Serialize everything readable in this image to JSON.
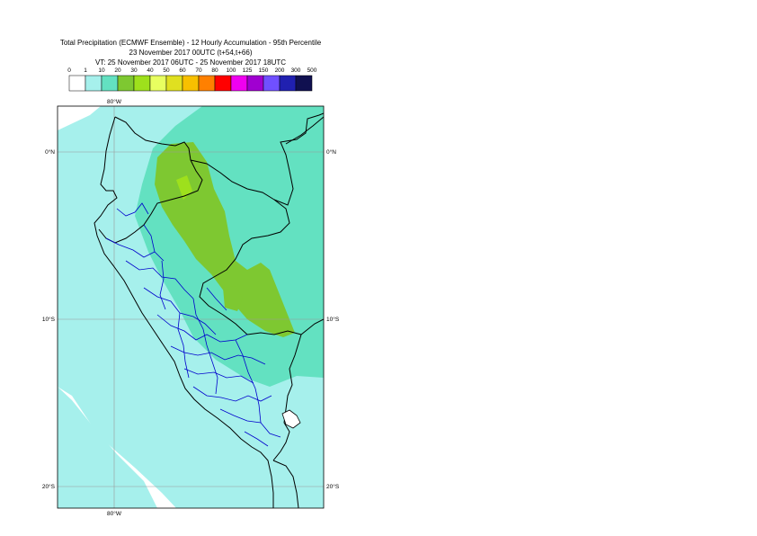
{
  "title": {
    "line1": "Total Precipitation (ECMWF Ensemble) - 12 Hourly Accumulation - 95th Percentile",
    "line2": "23 November 2017 00UTC (t+54,t+66)",
    "line3": "VT: 25 November 2017 06UTC - 25 November 2017 18UTC"
  },
  "legend": {
    "ticks": [
      "0",
      "1",
      "10",
      "20",
      "30",
      "40",
      "50",
      "60",
      "70",
      "80",
      "100",
      "125",
      "150",
      "200",
      "300",
      "500"
    ],
    "colors": [
      "#ffffff",
      "#a6f0ec",
      "#63e1c1",
      "#7ec831",
      "#9ee01c",
      "#e8ff60",
      "#e0e020",
      "#f8c000",
      "#ff8000",
      "#ff0000",
      "#f000f0",
      "#a000d0",
      "#7050ff",
      "#2020b0",
      "#101050"
    ]
  },
  "map": {
    "lon_labels": {
      "top": "80°W",
      "bottom": "80°W"
    },
    "lat_labels": [
      {
        "lat": 0,
        "left": "0°N",
        "right": "0°N"
      },
      {
        "lat": -10,
        "left": "10°S",
        "right": "10°S"
      },
      {
        "lat": -20,
        "left": "20°S",
        "right": "20°S"
      }
    ],
    "extent": {
      "lon_min": -83.4,
      "lon_max": -67.6,
      "lat_min": -21.2,
      "lat_max": 2.6
    },
    "colors": {
      "ocean_precip": "#a6f0ec",
      "land_precip": "#63e1c1",
      "heavy_precip": "#7ec831",
      "country_border": "#000000",
      "admin_border": "#0000cc",
      "graticule": "#999999"
    }
  }
}
